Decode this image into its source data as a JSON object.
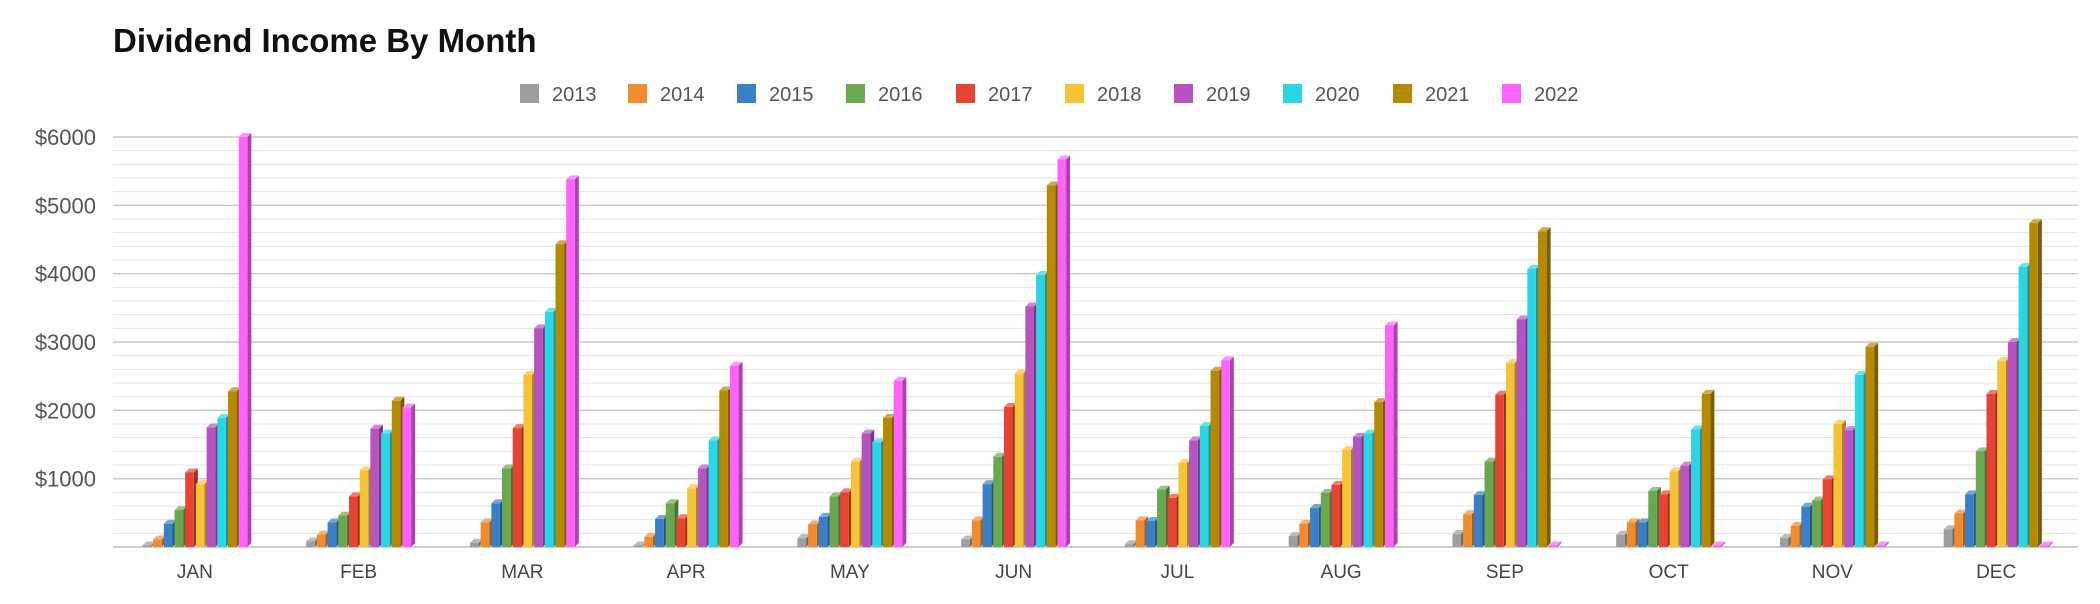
{
  "chart_data": {
    "type": "bar",
    "title": "Dividend Income By Month",
    "xlabel": "",
    "ylabel": "",
    "ylim": [
      0,
      6000
    ],
    "yticks": [
      {
        "value": 1000,
        "label": "$1000"
      },
      {
        "value": 2000,
        "label": "$2000"
      },
      {
        "value": 3000,
        "label": "$3000"
      },
      {
        "value": 4000,
        "label": "$4000"
      },
      {
        "value": 5000,
        "label": "$5000"
      },
      {
        "value": 6000,
        "label": "$6000"
      }
    ],
    "grid": true,
    "legend_position": "top",
    "categories": [
      "JAN",
      "FEB",
      "MAR",
      "APR",
      "MAY",
      "JUN",
      "JUL",
      "AUG",
      "SEP",
      "OCT",
      "NOV",
      "DEC"
    ],
    "series": [
      {
        "name": "2013",
        "color": "#9e9e9e",
        "values": [
          20,
          80,
          60,
          10,
          130,
          110,
          40,
          160,
          190,
          180,
          130,
          260
        ]
      },
      {
        "name": "2014",
        "color": "#f08c2e",
        "values": [
          110,
          180,
          360,
          150,
          330,
          390,
          390,
          340,
          480,
          360,
          310,
          490
        ]
      },
      {
        "name": "2015",
        "color": "#3a80c9",
        "values": [
          340,
          360,
          640,
          410,
          440,
          920,
          380,
          570,
          760,
          360,
          590,
          770
        ]
      },
      {
        "name": "2016",
        "color": "#6aa84f",
        "values": [
          540,
          460,
          1150,
          640,
          740,
          1320,
          840,
          790,
          1250,
          820,
          680,
          1400
        ]
      },
      {
        "name": "2017",
        "color": "#e64431",
        "values": [
          1090,
          740,
          1740,
          420,
          800,
          2050,
          720,
          910,
          2230,
          770,
          990,
          2240
        ]
      },
      {
        "name": "2018",
        "color": "#f6c338",
        "values": [
          920,
          1120,
          2520,
          860,
          1250,
          2540,
          1230,
          1420,
          2690,
          1110,
          1800,
          2720
        ]
      },
      {
        "name": "2019",
        "color": "#b752c1",
        "values": [
          1750,
          1730,
          3200,
          1150,
          1660,
          3520,
          1560,
          1610,
          3330,
          1190,
          1710,
          3000
        ]
      },
      {
        "name": "2020",
        "color": "#2ad6e4",
        "values": [
          1890,
          1660,
          3440,
          1560,
          1530,
          3980,
          1770,
          1660,
          4070,
          1720,
          2520,
          4100
        ]
      },
      {
        "name": "2021",
        "color": "#b58900",
        "values": [
          2280,
          2140,
          4430,
          2290,
          1890,
          5290,
          2580,
          2120,
          4620,
          2240,
          2930,
          4740
        ]
      },
      {
        "name": "2022",
        "color": "#fb63fb",
        "values": [
          6000,
          2040,
          5380,
          2650,
          2430,
          5670,
          2730,
          3240,
          0,
          0,
          0,
          0
        ]
      }
    ]
  }
}
